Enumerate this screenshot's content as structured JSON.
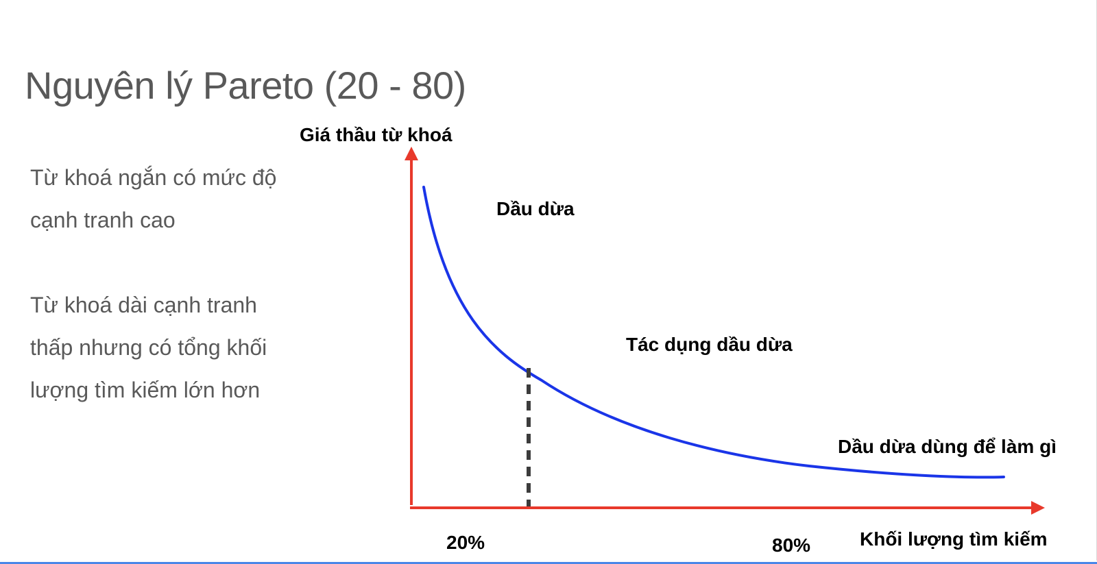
{
  "slide": {
    "title": "Nguyên lý Pareto (20 - 80)",
    "bullets": [
      {
        "lines": [
          "Từ khoá ngắn có mức độ",
          "cạnh tranh cao"
        ]
      },
      {
        "lines": [
          "Từ khoá dài cạnh tranh",
          "thấp nhưng có tổng khối",
          "lượng tìm kiếm lớn hơn"
        ]
      }
    ]
  },
  "diagram": {
    "y_axis_label": "Giá thầu từ khoá",
    "x_axis_label": "Khối lượng tìm kiếm",
    "curve_labels": {
      "head": "Dầu dừa",
      "middle": "Tác dụng dầu dừa",
      "tail": "Dầu dừa dùng để làm gì"
    },
    "split_labels": {
      "left": "20%",
      "right": "80%"
    },
    "colors": {
      "axis": "#e8392b",
      "curve": "#1a35e8",
      "divider": "#3c3c3c"
    }
  }
}
